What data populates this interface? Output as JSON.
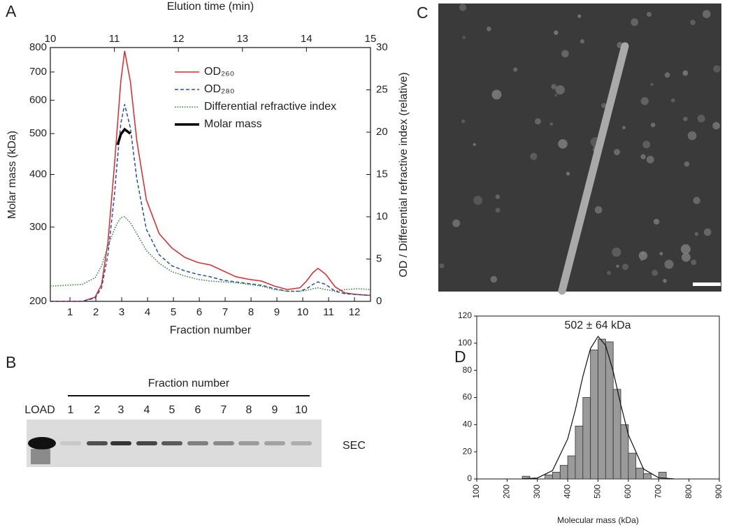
{
  "panel_labels": [
    "A",
    "B",
    "C",
    "D"
  ],
  "chart_data": [
    {
      "type": "line",
      "xlabel": "Elution time (min)",
      "xlim": [
        10,
        15
      ],
      "xticks": [
        10,
        11,
        12,
        13,
        14,
        15
      ],
      "x2label": "Fraction number",
      "x2lim": [
        0.24,
        12.62
      ],
      "x2ticks": [
        1,
        2,
        3,
        4,
        5,
        6,
        7,
        8,
        9,
        10,
        11,
        12
      ],
      "ylabel": "Molar mass (kDa)",
      "ylim": [
        200,
        800
      ],
      "yticks": [
        200,
        300,
        400,
        500,
        600,
        700,
        800
      ],
      "log_y": true,
      "y2label": "OD / Differential refractive index (relative)",
      "y2lim": [
        0,
        30
      ],
      "y2ticks": [
        0,
        5,
        10,
        15,
        20,
        25,
        30
      ],
      "legend": "upper right",
      "x": [
        10.0,
        10.5,
        10.7,
        10.8,
        10.9,
        11.0,
        11.05,
        11.1,
        11.16,
        11.25,
        11.35,
        11.5,
        11.7,
        11.9,
        12.1,
        12.3,
        12.5,
        12.7,
        12.9,
        13.1,
        13.3,
        13.5,
        13.7,
        13.9,
        14.0,
        14.1,
        14.18,
        14.3,
        14.45,
        14.6,
        14.8,
        15.0
      ],
      "series": [
        {
          "name": "OD₂₆₀",
          "color": "#e0262b",
          "style": "solid",
          "axis": "y2",
          "values": [
            0,
            0,
            0.5,
            2,
            7,
            16,
            21,
            26,
            29.6,
            26,
            19,
            12,
            8,
            6.3,
            5.2,
            4.6,
            4.3,
            3.6,
            2.9,
            2.6,
            2.4,
            1.8,
            1.4,
            1.6,
            2.4,
            3.4,
            3.9,
            3.2,
            1.7,
            1.0,
            0.8,
            0.7
          ]
        },
        {
          "name": "OD₂₈₀",
          "color": "#2b4f9e",
          "style": "dashed",
          "axis": "y2",
          "values": [
            0,
            0,
            0.4,
            1.6,
            5.5,
            12.5,
            17,
            21,
            23.3,
            20.5,
            14.5,
            8.5,
            5.5,
            4.2,
            3.6,
            3.2,
            2.9,
            2.5,
            2.3,
            2.1,
            1.9,
            1.5,
            1.2,
            1.2,
            1.5,
            2.0,
            2.3,
            2.0,
            1.2,
            0.9,
            0.8,
            0.7
          ]
        },
        {
          "name": "Differential refractive index",
          "color": "#2e7d32",
          "style": "dotted",
          "axis": "y2",
          "values": [
            1.8,
            2.0,
            2.8,
            4.2,
            6.5,
            8.5,
            9.3,
            9.9,
            10.0,
            9.3,
            8,
            6,
            4.5,
            3.5,
            3.0,
            2.6,
            2.4,
            2.3,
            2.2,
            2.0,
            1.8,
            1.4,
            1.2,
            1.2,
            1.3,
            1.5,
            1.6,
            1.4,
            1.2,
            1.4,
            1.5,
            1.4
          ]
        },
        {
          "name": "Molar mass",
          "color": "#000000",
          "style": "solid",
          "axis": "y",
          "values": [
            null,
            null,
            null,
            null,
            null,
            null,
            470,
            498,
            512,
            500,
            null,
            null,
            null,
            null,
            null,
            null,
            null,
            null,
            null,
            null,
            null,
            null,
            null,
            null,
            null,
            null,
            null,
            null,
            null,
            null,
            null,
            null
          ]
        }
      ]
    },
    {
      "type": "histogram",
      "annotation": "502 ± 64 kDa",
      "xlabel": "Molecular mass (kDa)",
      "xlim": [
        100,
        900
      ],
      "xticks": [
        100,
        200,
        300,
        400,
        500,
        600,
        700,
        800,
        900
      ],
      "ylim": [
        0,
        120
      ],
      "yticks": [
        0,
        20,
        40,
        60,
        80,
        100,
        120
      ],
      "color": "#9a9a9a",
      "bins": [
        250,
        275,
        300,
        325,
        350,
        375,
        400,
        425,
        450,
        475,
        500,
        525,
        550,
        575,
        600,
        625,
        650,
        675,
        700,
        725
      ],
      "values": [
        2,
        0,
        0,
        3,
        5,
        10,
        17,
        39,
        60,
        95,
        103,
        101,
        66,
        40,
        19,
        8,
        4,
        0,
        5
      ],
      "fit": {
        "x": [
          250,
          300,
          350,
          400,
          425,
          450,
          475,
          500,
          525,
          550,
          575,
          600,
          650,
          700,
          750
        ],
        "values": [
          0.05,
          0.7,
          6.2,
          29.5,
          50.8,
          75.5,
          96.1,
          105,
          98.4,
          79.2,
          54.8,
          32.5,
          7.3,
          0.9,
          0.06
        ]
      }
    }
  ],
  "gel": {
    "title": "Fraction number",
    "load": "LOAD",
    "lanes": [
      "1",
      "2",
      "3",
      "4",
      "5",
      "6",
      "7",
      "8",
      "9",
      "10"
    ],
    "row_label": "SEC"
  }
}
